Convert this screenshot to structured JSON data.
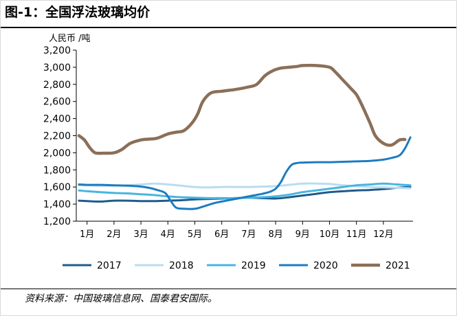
{
  "figure": {
    "title": "图-1：全国浮法玻璃均价",
    "source": "资料来源：中国玻璃信息网、国泰君安国际。"
  },
  "chart_data": {
    "type": "line",
    "ylabel": "人民币 /吨",
    "ylim": [
      1200,
      3200
    ],
    "yticks": [
      1200,
      1400,
      1600,
      1800,
      2000,
      2200,
      2400,
      2600,
      2800,
      3000,
      3200
    ],
    "ytick_labels": [
      "1,200",
      "1,400",
      "1,600",
      "1,800",
      "2,000",
      "2,200",
      "2,400",
      "2,600",
      "2,800",
      "3,000",
      "3,200"
    ],
    "xlim": [
      0.6,
      13.1
    ],
    "xticks": [
      1,
      2,
      3,
      4,
      5,
      6,
      7,
      8,
      9,
      10,
      11,
      12
    ],
    "xtick_labels": [
      "1月",
      "2月",
      "3月",
      "4月",
      "5月",
      "6月",
      "7月",
      "8月",
      "9月",
      "10月",
      "11月",
      "12月"
    ],
    "grid": false,
    "legend_position": "bottom",
    "series": [
      {
        "name": "2017",
        "color": "#1f5a8c",
        "x": [
          0.7,
          1.0,
          1.5,
          2.0,
          2.5,
          3.0,
          3.5,
          4.0,
          4.5,
          5.0,
          5.5,
          6.0,
          6.5,
          7.0,
          7.5,
          8.0,
          8.5,
          9.0,
          9.5,
          10.0,
          10.5,
          11.0,
          11.5,
          12.0,
          12.5,
          13.0
        ],
        "y": [
          1440,
          1435,
          1430,
          1440,
          1440,
          1435,
          1435,
          1440,
          1445,
          1455,
          1460,
          1465,
          1470,
          1475,
          1470,
          1465,
          1480,
          1500,
          1520,
          1540,
          1550,
          1560,
          1565,
          1575,
          1590,
          1600
        ]
      },
      {
        "name": "2018",
        "color": "#b9dcf2",
        "x": [
          0.7,
          1.0,
          1.5,
          2.0,
          2.5,
          3.0,
          3.5,
          4.0,
          4.5,
          5.0,
          5.5,
          6.0,
          6.5,
          7.0,
          7.5,
          8.0,
          8.5,
          9.0,
          9.5,
          10.0,
          10.5,
          11.0,
          11.5,
          12.0,
          12.5,
          13.0
        ],
        "y": [
          1620,
          1620,
          1615,
          1615,
          1620,
          1630,
          1640,
          1630,
          1615,
          1600,
          1595,
          1600,
          1600,
          1600,
          1605,
          1610,
          1625,
          1640,
          1640,
          1635,
          1620,
          1610,
          1600,
          1595,
          1590,
          1585
        ]
      },
      {
        "name": "2019",
        "color": "#48b5e0",
        "x": [
          0.7,
          1.0,
          1.5,
          2.0,
          2.5,
          3.0,
          3.5,
          4.0,
          4.5,
          5.0,
          5.5,
          6.0,
          6.5,
          7.0,
          7.5,
          8.0,
          8.5,
          9.0,
          9.5,
          10.0,
          10.5,
          11.0,
          11.5,
          12.0,
          12.5,
          13.0
        ],
        "y": [
          1560,
          1550,
          1540,
          1530,
          1525,
          1515,
          1505,
          1490,
          1480,
          1475,
          1470,
          1470,
          1470,
          1475,
          1480,
          1490,
          1510,
          1540,
          1560,
          1580,
          1600,
          1620,
          1630,
          1640,
          1630,
          1620
        ]
      },
      {
        "name": "2020",
        "color": "#1c7cc0",
        "x": [
          0.7,
          1.0,
          1.5,
          2.0,
          2.5,
          3.0,
          3.3,
          3.6,
          3.9,
          4.1,
          4.3,
          4.6,
          5.0,
          5.3,
          5.7,
          6.0,
          6.5,
          7.0,
          7.5,
          7.8,
          8.0,
          8.2,
          8.4,
          8.6,
          8.8,
          9.0,
          9.5,
          10.0,
          10.5,
          11.0,
          11.5,
          12.0,
          12.3,
          12.6,
          12.8,
          13.0
        ],
        "y": [
          1630,
          1625,
          1625,
          1620,
          1615,
          1605,
          1590,
          1565,
          1530,
          1440,
          1360,
          1345,
          1345,
          1370,
          1410,
          1430,
          1460,
          1490,
          1520,
          1545,
          1580,
          1660,
          1780,
          1860,
          1880,
          1885,
          1890,
          1890,
          1895,
          1900,
          1905,
          1920,
          1940,
          1970,
          2050,
          2180
        ]
      },
      {
        "name": "2021",
        "color": "#8b6f58",
        "x": [
          0.7,
          0.9,
          1.1,
          1.3,
          1.6,
          2.0,
          2.3,
          2.6,
          3.0,
          3.3,
          3.6,
          4.0,
          4.3,
          4.6,
          4.9,
          5.1,
          5.3,
          5.6,
          6.0,
          6.5,
          7.0,
          7.3,
          7.6,
          7.9,
          8.2,
          8.5,
          8.8,
          9.0,
          9.5,
          10.0,
          10.2,
          10.5,
          10.8,
          11.0,
          11.2,
          11.5,
          11.7,
          12.0,
          12.3,
          12.6,
          12.8
        ],
        "y": [
          2200,
          2150,
          2060,
          2000,
          1995,
          2000,
          2040,
          2110,
          2150,
          2160,
          2170,
          2220,
          2240,
          2260,
          2350,
          2450,
          2600,
          2700,
          2720,
          2740,
          2770,
          2800,
          2900,
          2960,
          2990,
          3000,
          3010,
          3020,
          3020,
          3000,
          2950,
          2850,
          2750,
          2680,
          2560,
          2350,
          2200,
          2110,
          2090,
          2150,
          2155
        ]
      }
    ]
  }
}
